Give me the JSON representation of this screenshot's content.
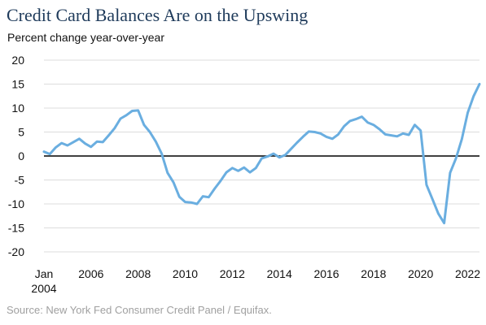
{
  "chart_data": {
    "type": "line",
    "title": "Credit Card Balances Are on the Upswing",
    "subtitle": "Percent change year-over-year",
    "source": "Source: New York Fed Consumer Credit Panel / Equifax.",
    "ylim": [
      -20,
      20
    ],
    "xlim": [
      2004,
      2022.5
    ],
    "y_ticks": [
      20,
      15,
      10,
      5,
      0,
      -5,
      -10,
      -15,
      -20
    ],
    "x_ticks": [
      {
        "value": 2004,
        "label": "Jan",
        "label2": "2004"
      },
      {
        "value": 2006,
        "label": "2006"
      },
      {
        "value": 2008,
        "label": "2008"
      },
      {
        "value": 2010,
        "label": "2010"
      },
      {
        "value": 2012,
        "label": "2012"
      },
      {
        "value": 2014,
        "label": "2014"
      },
      {
        "value": 2016,
        "label": "2016"
      },
      {
        "value": 2018,
        "label": "2018"
      },
      {
        "value": 2020,
        "label": "2020"
      },
      {
        "value": 2022,
        "label": "2022"
      }
    ],
    "grid": "horizontal",
    "zero_line": true,
    "series": [
      {
        "color": "#6aaee0",
        "x": [
          2004.0,
          2004.25,
          2004.5,
          2004.75,
          2005.0,
          2005.25,
          2005.5,
          2005.75,
          2006.0,
          2006.25,
          2006.5,
          2006.75,
          2007.0,
          2007.25,
          2007.5,
          2007.75,
          2008.0,
          2008.25,
          2008.5,
          2008.75,
          2009.0,
          2009.25,
          2009.5,
          2009.75,
          2010.0,
          2010.25,
          2010.5,
          2010.75,
          2011.0,
          2011.25,
          2011.5,
          2011.75,
          2012.0,
          2012.25,
          2012.5,
          2012.75,
          2013.0,
          2013.25,
          2013.5,
          2013.75,
          2014.0,
          2014.25,
          2014.5,
          2014.75,
          2015.0,
          2015.25,
          2015.5,
          2015.75,
          2016.0,
          2016.25,
          2016.5,
          2016.75,
          2017.0,
          2017.25,
          2017.5,
          2017.75,
          2018.0,
          2018.25,
          2018.5,
          2018.75,
          2019.0,
          2019.25,
          2019.5,
          2019.75,
          2020.0,
          2020.25,
          2020.5,
          2020.75,
          2021.0,
          2021.25,
          2021.5,
          2021.75,
          2022.0,
          2022.25,
          2022.5
        ],
        "values": [
          0.9,
          0.4,
          1.8,
          2.7,
          2.2,
          2.9,
          3.6,
          2.6,
          1.9,
          3.0,
          2.9,
          4.3,
          5.8,
          7.8,
          8.5,
          9.4,
          9.5,
          6.5,
          5.0,
          3.0,
          0.5,
          -3.5,
          -5.5,
          -8.5,
          -9.6,
          -9.7,
          -10.0,
          -8.4,
          -8.6,
          -6.8,
          -5.2,
          -3.4,
          -2.5,
          -3.1,
          -2.4,
          -3.4,
          -2.5,
          -0.5,
          -0.1,
          0.5,
          -0.3,
          0.2,
          1.5,
          2.8,
          4.0,
          5.1,
          5.0,
          4.7,
          4.0,
          3.6,
          4.5,
          6.2,
          7.3,
          7.7,
          8.2,
          7.0,
          6.5,
          5.6,
          4.5,
          4.3,
          4.1,
          4.7,
          4.4,
          6.5,
          5.3,
          -6.0,
          -9.0,
          -12.0,
          -14.0,
          -3.5,
          -0.5,
          3.5,
          9.0,
          12.5,
          15.0
        ]
      }
    ]
  }
}
